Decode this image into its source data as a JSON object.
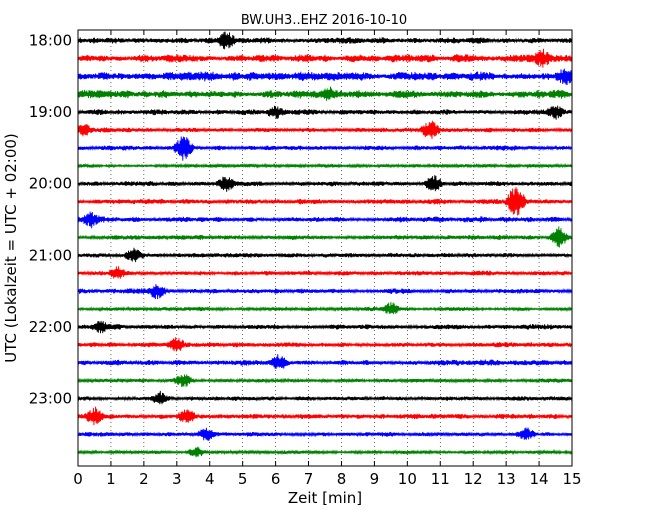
{
  "chart_data": {
    "type": "line",
    "title": "BW.UH3..EHZ 2016-10-10",
    "xlabel": "Zeit  [min]",
    "ylabel": "UTC (Lokalzeit = UTC + 02:00)",
    "xlim": [
      0,
      15
    ],
    "xticks": [
      "0",
      "1",
      "2",
      "3",
      "4",
      "5",
      "6",
      "7",
      "8",
      "9",
      "10",
      "11",
      "12",
      "13",
      "14",
      "15"
    ],
    "yticks": [
      "18:00",
      "19:00",
      "20:00",
      "21:00",
      "22:00",
      "23:00"
    ],
    "grid": "vertical dotted",
    "colors": [
      "#000000",
      "#ff0000",
      "#0000ff",
      "#008000"
    ],
    "traces": [
      {
        "start": "18:00",
        "color": "#000000",
        "amplitude": 0.55,
        "events": [
          {
            "x": 4.5,
            "amp": 1.4
          }
        ]
      },
      {
        "start": "18:15",
        "color": "#ff0000",
        "amplitude": 0.7,
        "events": [
          {
            "x": 14.1,
            "amp": 1.3
          }
        ]
      },
      {
        "start": "18:30",
        "color": "#0000ff",
        "amplitude": 0.8,
        "events": [
          {
            "x": 14.8,
            "amp": 1.1
          }
        ]
      },
      {
        "start": "18:45",
        "color": "#008000",
        "amplitude": 0.75,
        "events": [
          {
            "x": 7.6,
            "amp": 1.0
          }
        ]
      },
      {
        "start": "19:00",
        "color": "#000000",
        "amplitude": 0.5,
        "events": [
          {
            "x": 6.0,
            "amp": 1.0
          },
          {
            "x": 14.5,
            "amp": 1.0
          }
        ]
      },
      {
        "start": "19:15",
        "color": "#ff0000",
        "amplitude": 0.4,
        "events": [
          {
            "x": 10.7,
            "amp": 1.6
          },
          {
            "x": 0.2,
            "amp": 1.0
          }
        ]
      },
      {
        "start": "19:30",
        "color": "#0000ff",
        "amplitude": 0.45,
        "events": [
          {
            "x": 3.2,
            "amp": 2.0
          }
        ]
      },
      {
        "start": "19:45",
        "color": "#008000",
        "amplitude": 0.3,
        "events": []
      },
      {
        "start": "20:00",
        "color": "#000000",
        "amplitude": 0.45,
        "events": [
          {
            "x": 4.5,
            "amp": 1.2
          },
          {
            "x": 10.8,
            "amp": 1.2
          }
        ]
      },
      {
        "start": "20:15",
        "color": "#ff0000",
        "amplitude": 0.45,
        "events": [
          {
            "x": 13.3,
            "amp": 2.8
          }
        ]
      },
      {
        "start": "20:30",
        "color": "#0000ff",
        "amplitude": 0.5,
        "events": [
          {
            "x": 0.4,
            "amp": 1.2
          }
        ]
      },
      {
        "start": "20:45",
        "color": "#008000",
        "amplitude": 0.45,
        "events": [
          {
            "x": 14.6,
            "amp": 1.5
          }
        ]
      },
      {
        "start": "21:00",
        "color": "#000000",
        "amplitude": 0.4,
        "events": [
          {
            "x": 1.7,
            "amp": 1.1
          }
        ]
      },
      {
        "start": "21:15",
        "color": "#ff0000",
        "amplitude": 0.4,
        "events": [
          {
            "x": 1.2,
            "amp": 1.0
          }
        ]
      },
      {
        "start": "21:30",
        "color": "#0000ff",
        "amplitude": 0.45,
        "events": [
          {
            "x": 2.4,
            "amp": 1.2
          }
        ]
      },
      {
        "start": "21:45",
        "color": "#008000",
        "amplitude": 0.35,
        "events": [
          {
            "x": 9.5,
            "amp": 1.0
          }
        ]
      },
      {
        "start": "22:00",
        "color": "#000000",
        "amplitude": 0.45,
        "events": [
          {
            "x": 0.7,
            "amp": 1.0
          }
        ]
      },
      {
        "start": "22:15",
        "color": "#ff0000",
        "amplitude": 0.45,
        "events": [
          {
            "x": 3.0,
            "amp": 1.1
          }
        ]
      },
      {
        "start": "22:30",
        "color": "#0000ff",
        "amplitude": 0.5,
        "events": [
          {
            "x": 6.1,
            "amp": 1.2
          }
        ]
      },
      {
        "start": "22:45",
        "color": "#008000",
        "amplitude": 0.35,
        "events": [
          {
            "x": 3.2,
            "amp": 1.1
          }
        ]
      },
      {
        "start": "23:00",
        "color": "#000000",
        "amplitude": 0.4,
        "events": [
          {
            "x": 2.5,
            "amp": 1.0
          }
        ]
      },
      {
        "start": "23:15",
        "color": "#ff0000",
        "amplitude": 0.45,
        "events": [
          {
            "x": 0.5,
            "amp": 1.4
          },
          {
            "x": 3.3,
            "amp": 1.2
          }
        ]
      },
      {
        "start": "23:30",
        "color": "#0000ff",
        "amplitude": 0.4,
        "events": [
          {
            "x": 3.9,
            "amp": 1.0
          },
          {
            "x": 13.6,
            "amp": 1.0
          }
        ]
      },
      {
        "start": "23:45",
        "color": "#008000",
        "amplitude": 0.3,
        "events": [
          {
            "x": 3.6,
            "amp": 0.8
          }
        ]
      }
    ]
  }
}
